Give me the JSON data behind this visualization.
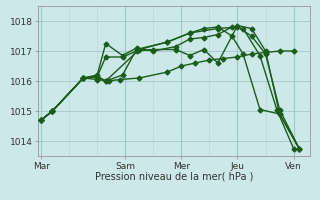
{
  "xlabel": "Pression niveau de la mer( hPa )",
  "ylim": [
    1013.5,
    1018.5
  ],
  "xlim": [
    -0.1,
    9.6
  ],
  "background_color": "#cce8e8",
  "grid_color_major": "#a0c8c8",
  "grid_color_minor": "#b8d8d8",
  "line_color": "#1a5c1a",
  "tick_labels": [
    "Mar",
    "Sam",
    "Mer",
    "Jeu",
    "Ven"
  ],
  "tick_positions": [
    0.0,
    3.0,
    5.0,
    7.0,
    9.0
  ],
  "vline_positions": [
    0.0,
    3.0,
    5.0,
    7.0,
    9.0
  ],
  "yticks": [
    1014,
    1015,
    1016,
    1017,
    1018
  ],
  "minor_vlines": [
    1.0,
    2.0,
    4.0,
    6.0,
    8.0
  ],
  "series_x": [
    [
      0.0,
      0.4,
      1.5,
      2.0,
      2.4,
      2.8,
      3.5,
      4.5,
      5.0,
      5.5,
      6.0,
      6.5,
      7.0,
      7.5,
      8.0,
      8.5,
      9.0
    ],
    [
      0.0,
      0.4,
      1.5,
      2.0,
      2.3,
      2.9,
      3.4,
      4.0,
      4.8,
      5.3,
      5.8,
      6.3,
      6.8,
      7.2,
      7.8,
      8.4,
      9.0
    ],
    [
      0.0,
      0.4,
      1.5,
      2.0,
      2.3,
      2.9,
      3.4,
      4.0,
      4.8,
      5.3,
      5.8,
      6.3,
      7.0,
      7.5,
      8.0,
      8.5,
      9.2
    ],
    [
      0.0,
      0.4,
      1.5,
      2.0,
      2.3,
      2.9,
      3.4,
      4.5,
      5.3,
      6.3,
      7.0,
      7.5,
      8.0,
      8.5,
      9.2
    ],
    [
      0.0,
      0.4,
      1.5,
      2.0,
      2.3,
      3.5,
      4.5,
      5.3,
      5.8,
      6.3,
      6.8,
      7.2,
      7.8,
      8.5,
      9.2
    ]
  ],
  "series_y": [
    [
      1014.7,
      1015.0,
      1016.1,
      1016.05,
      1016.0,
      1016.05,
      1016.1,
      1016.3,
      1016.5,
      1016.6,
      1016.7,
      1016.75,
      1016.8,
      1016.9,
      1016.95,
      1017.0,
      1017.0
    ],
    [
      1014.7,
      1015.0,
      1016.1,
      1016.2,
      1017.25,
      1016.85,
      1017.1,
      1017.0,
      1017.15,
      1017.4,
      1017.45,
      1017.55,
      1017.8,
      1017.75,
      1016.85,
      1015.05,
      1013.75
    ],
    [
      1014.7,
      1015.0,
      1016.1,
      1016.15,
      1016.8,
      1016.8,
      1017.0,
      1017.05,
      1017.05,
      1016.85,
      1017.05,
      1016.6,
      1017.85,
      1017.75,
      1017.0,
      1014.9,
      1013.75
    ],
    [
      1014.7,
      1015.0,
      1016.1,
      1016.15,
      1016.0,
      1016.2,
      1017.05,
      1017.3,
      1017.6,
      1017.75,
      1017.8,
      1017.5,
      1016.9,
      1015.05,
      1013.75
    ],
    [
      1014.7,
      1015.0,
      1016.1,
      1016.15,
      1016.0,
      1017.05,
      1017.3,
      1017.6,
      1017.75,
      1017.8,
      1017.5,
      1016.9,
      1015.05,
      1014.9,
      1013.75
    ]
  ],
  "marker": "D",
  "markersize": 2.5,
  "linewidth": 1.0
}
